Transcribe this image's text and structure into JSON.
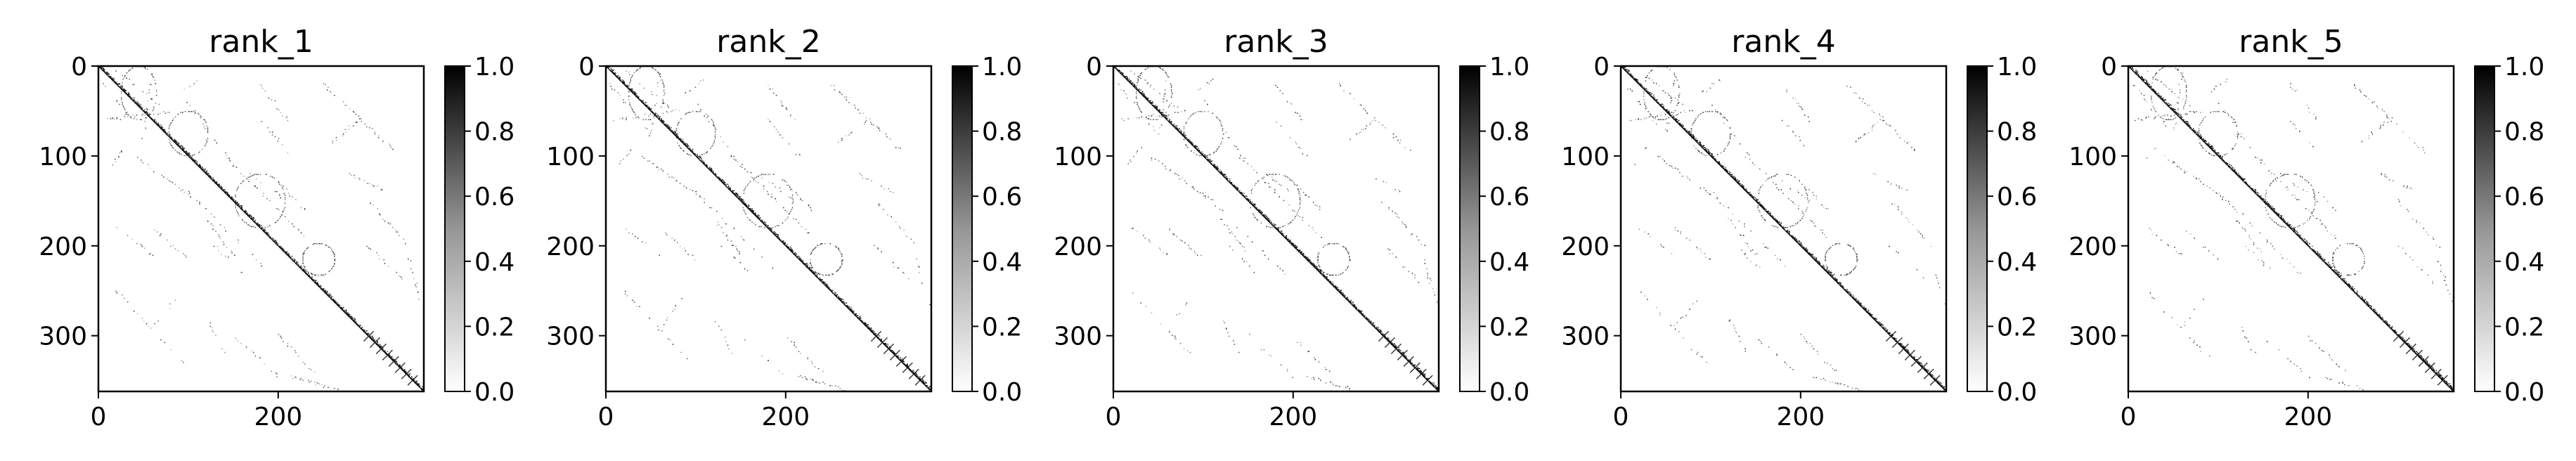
{
  "figure": {
    "cmap": "Greys",
    "background": "#ffffff"
  },
  "chart_data": [
    {
      "type": "heatmap",
      "title": "rank_1",
      "xlim": [
        0,
        362
      ],
      "ylim": [
        362,
        0
      ],
      "x_ticks": [
        0,
        200
      ],
      "x_tick_labels": [
        "0",
        "200"
      ],
      "y_ticks": [
        0,
        100,
        200,
        300
      ],
      "y_tick_labels": [
        "0",
        "100",
        "200",
        "300"
      ],
      "colorbar": {
        "range": [
          0.0,
          1.0
        ],
        "ticks": [
          0.0,
          0.2,
          0.4,
          0.6,
          0.8,
          1.0
        ],
        "tick_labels": [
          "0.0",
          "0.2",
          "0.4",
          "0.6",
          "0.8",
          "1.0"
        ]
      }
    },
    {
      "type": "heatmap",
      "title": "rank_2",
      "xlim": [
        0,
        362
      ],
      "ylim": [
        362,
        0
      ],
      "x_ticks": [
        0,
        200
      ],
      "x_tick_labels": [
        "0",
        "200"
      ],
      "y_ticks": [
        0,
        100,
        200,
        300
      ],
      "y_tick_labels": [
        "0",
        "100",
        "200",
        "300"
      ],
      "colorbar": {
        "range": [
          0.0,
          1.0
        ],
        "ticks": [
          0.0,
          0.2,
          0.4,
          0.6,
          0.8,
          1.0
        ],
        "tick_labels": [
          "0.0",
          "0.2",
          "0.4",
          "0.6",
          "0.8",
          "1.0"
        ]
      }
    },
    {
      "type": "heatmap",
      "title": "rank_3",
      "xlim": [
        0,
        362
      ],
      "ylim": [
        362,
        0
      ],
      "x_ticks": [
        0,
        200
      ],
      "x_tick_labels": [
        "0",
        "200"
      ],
      "y_ticks": [
        0,
        100,
        200,
        300
      ],
      "y_tick_labels": [
        "0",
        "100",
        "200",
        "300"
      ],
      "colorbar": {
        "range": [
          0.0,
          1.0
        ],
        "ticks": [
          0.0,
          0.2,
          0.4,
          0.6,
          0.8,
          1.0
        ],
        "tick_labels": [
          "0.0",
          "0.2",
          "0.4",
          "0.6",
          "0.8",
          "1.0"
        ]
      }
    },
    {
      "type": "heatmap",
      "title": "rank_4",
      "xlim": [
        0,
        362
      ],
      "ylim": [
        362,
        0
      ],
      "x_ticks": [
        0,
        200
      ],
      "x_tick_labels": [
        "0",
        "200"
      ],
      "y_ticks": [
        0,
        100,
        200,
        300
      ],
      "y_tick_labels": [
        "0",
        "100",
        "200",
        "300"
      ],
      "colorbar": {
        "range": [
          0.0,
          1.0
        ],
        "ticks": [
          0.0,
          0.2,
          0.4,
          0.6,
          0.8,
          1.0
        ],
        "tick_labels": [
          "0.0",
          "0.2",
          "0.4",
          "0.6",
          "0.8",
          "1.0"
        ]
      }
    },
    {
      "type": "heatmap",
      "title": "rank_5",
      "xlim": [
        0,
        362
      ],
      "ylim": [
        362,
        0
      ],
      "x_ticks": [
        0,
        200
      ],
      "x_tick_labels": [
        "0",
        "200"
      ],
      "y_ticks": [
        0,
        100,
        200,
        300
      ],
      "y_tick_labels": [
        "0",
        "100",
        "200",
        "300"
      ],
      "colorbar": {
        "range": [
          0.0,
          1.0
        ],
        "ticks": [
          0.0,
          0.2,
          0.4,
          0.6,
          0.8,
          1.0
        ],
        "tick_labels": [
          "0.0",
          "0.2",
          "0.4",
          "0.6",
          "0.8",
          "1.0"
        ]
      }
    }
  ]
}
